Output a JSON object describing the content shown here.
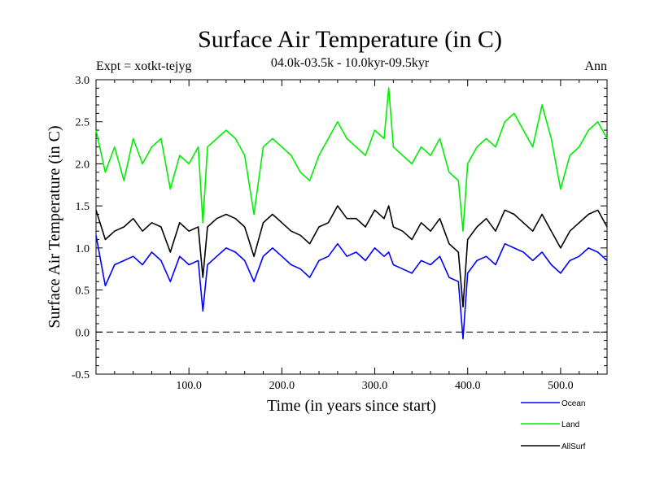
{
  "chart_data": {
    "type": "line",
    "title": "Surface Air Temperature (in C)",
    "subtitle": "04.0k-03.5k - 10.0kyr-09.5kyr",
    "expt_label": "Expt = xotkt-tejyg",
    "season_label": "Ann",
    "xlabel": "Time (in years since start)",
    "ylabel": "Surface Air Temperature (in C)",
    "xlim": [
      0,
      550
    ],
    "ylim": [
      -0.5,
      3.0
    ],
    "x_ticks": [
      100,
      200,
      300,
      400,
      500
    ],
    "x_tick_labels": [
      "100.0",
      "200.0",
      "300.0",
      "400.0",
      "500.0"
    ],
    "y_ticks": [
      -0.5,
      0.0,
      0.5,
      1.0,
      1.5,
      2.0,
      2.5,
      3.0
    ],
    "y_tick_labels": [
      "-0.5",
      "0.0",
      "0.5",
      "1.0",
      "1.5",
      "2.0",
      "2.5",
      "3.0"
    ],
    "reference_line": {
      "y": 0.0,
      "style": "dashed"
    },
    "legend_position": "bottom-right",
    "x": [
      0,
      10,
      20,
      30,
      40,
      50,
      60,
      70,
      80,
      90,
      100,
      110,
      115,
      120,
      130,
      140,
      150,
      160,
      170,
      180,
      190,
      200,
      210,
      220,
      230,
      240,
      250,
      260,
      270,
      280,
      290,
      300,
      310,
      315,
      320,
      330,
      340,
      350,
      360,
      370,
      380,
      390,
      395,
      400,
      410,
      420,
      430,
      440,
      450,
      460,
      470,
      480,
      490,
      500,
      510,
      520,
      530,
      540,
      550
    ],
    "series": [
      {
        "name": "Ocean",
        "color": "#0000ff",
        "values": [
          1.15,
          0.55,
          0.8,
          0.85,
          0.9,
          0.8,
          0.95,
          0.85,
          0.6,
          0.9,
          0.8,
          0.85,
          0.25,
          0.8,
          0.9,
          1.0,
          0.95,
          0.85,
          0.6,
          0.9,
          1.0,
          0.9,
          0.8,
          0.75,
          0.65,
          0.85,
          0.9,
          1.05,
          0.9,
          0.95,
          0.85,
          1.0,
          0.9,
          0.95,
          0.8,
          0.75,
          0.7,
          0.85,
          0.8,
          0.9,
          0.65,
          0.6,
          -0.08,
          0.7,
          0.85,
          0.9,
          0.8,
          1.05,
          1.0,
          0.95,
          0.85,
          0.95,
          0.8,
          0.7,
          0.85,
          0.9,
          1.0,
          0.95,
          0.85
        ]
      },
      {
        "name": "Land",
        "color": "#00ee00",
        "values": [
          2.4,
          1.9,
          2.2,
          1.8,
          2.3,
          2.0,
          2.2,
          2.3,
          1.7,
          2.1,
          2.0,
          2.2,
          1.3,
          2.2,
          2.3,
          2.4,
          2.3,
          2.1,
          1.4,
          2.2,
          2.3,
          2.2,
          2.1,
          1.9,
          1.8,
          2.1,
          2.3,
          2.5,
          2.3,
          2.2,
          2.1,
          2.4,
          2.3,
          2.9,
          2.2,
          2.1,
          2.0,
          2.2,
          2.1,
          2.3,
          1.9,
          1.8,
          1.2,
          2.0,
          2.2,
          2.3,
          2.2,
          2.5,
          2.6,
          2.4,
          2.2,
          2.7,
          2.3,
          1.7,
          2.1,
          2.2,
          2.4,
          2.5,
          2.3
        ]
      },
      {
        "name": "AllSurf",
        "color": "#000000",
        "values": [
          1.45,
          1.1,
          1.2,
          1.25,
          1.35,
          1.2,
          1.3,
          1.25,
          0.95,
          1.3,
          1.2,
          1.25,
          0.65,
          1.25,
          1.35,
          1.4,
          1.35,
          1.25,
          0.9,
          1.3,
          1.4,
          1.3,
          1.2,
          1.15,
          1.05,
          1.25,
          1.3,
          1.5,
          1.35,
          1.35,
          1.25,
          1.45,
          1.35,
          1.5,
          1.25,
          1.2,
          1.1,
          1.3,
          1.2,
          1.35,
          1.05,
          0.95,
          0.3,
          1.1,
          1.25,
          1.35,
          1.2,
          1.45,
          1.4,
          1.3,
          1.2,
          1.4,
          1.2,
          1.0,
          1.2,
          1.3,
          1.4,
          1.45,
          1.25
        ]
      }
    ]
  }
}
